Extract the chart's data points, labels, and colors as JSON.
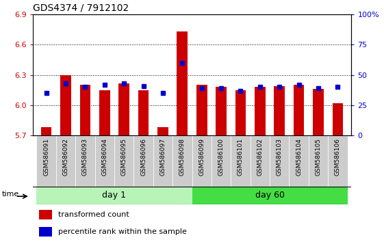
{
  "title": "GDS4374 / 7912102",
  "samples": [
    "GSM586091",
    "GSM586092",
    "GSM586093",
    "GSM586094",
    "GSM586095",
    "GSM586096",
    "GSM586097",
    "GSM586098",
    "GSM586099",
    "GSM586100",
    "GSM586101",
    "GSM586102",
    "GSM586103",
    "GSM586104",
    "GSM586105",
    "GSM586106"
  ],
  "red_values": [
    5.78,
    6.3,
    6.2,
    6.15,
    6.22,
    6.15,
    5.78,
    6.73,
    6.2,
    6.18,
    6.15,
    6.18,
    6.19,
    6.2,
    6.16,
    6.02
  ],
  "blue_percentile": [
    35,
    43,
    40,
    42,
    43,
    41,
    35,
    60,
    39,
    39,
    37,
    40,
    40,
    42,
    39,
    40
  ],
  "ymin": 5.7,
  "ymax": 6.9,
  "yticks_left": [
    5.7,
    6.0,
    6.3,
    6.6,
    6.9
  ],
  "yticks_right": [
    0,
    25,
    50,
    75,
    100
  ],
  "bar_color": "#cc0000",
  "dot_color": "#0000cc",
  "light_green": "#b8f4b8",
  "bright_green": "#44dd44",
  "grey": "#cccccc",
  "white": "#ffffff",
  "day1_label": "day 1",
  "day60_label": "day 60",
  "time_label": "time",
  "legend_red": "transformed count",
  "legend_blue": "percentile rank within the sample",
  "day1_count": 8,
  "day60_count": 8
}
